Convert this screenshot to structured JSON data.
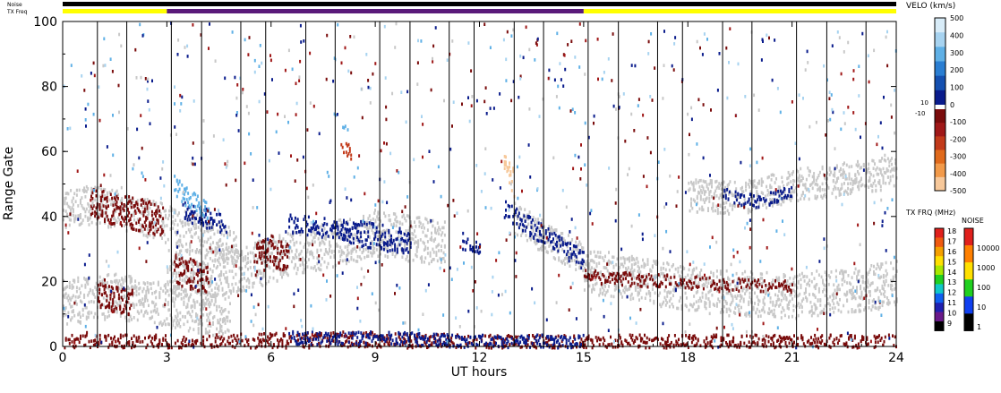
{
  "chart_data": {
    "type": "heatmap",
    "xlabel": "UT hours",
    "ylabel": "Range Gate",
    "xlim": [
      0,
      24
    ],
    "ylim": [
      0,
      100
    ],
    "x_ticks": [
      "0",
      "3",
      "6",
      "9",
      "12",
      "15",
      "18",
      "21",
      "24"
    ],
    "y_ticks": [
      "0",
      "20",
      "40",
      "60",
      "80",
      "100"
    ],
    "scan_boundaries_hours": [
      1,
      2,
      3,
      4,
      5,
      6,
      7,
      8,
      9,
      10,
      11,
      12,
      13,
      14,
      15,
      16,
      17,
      18,
      19,
      20,
      21,
      22,
      23
    ],
    "top_bars": {
      "noise_label": "Noise",
      "txfreq_label": "TX Freq",
      "noise_color": "#000000",
      "txfreq_segments": [
        {
          "start": 0,
          "end": 3,
          "color": "#ffff00"
        },
        {
          "start": 3,
          "end": 15,
          "color": "#5a1a7a"
        },
        {
          "start": 15,
          "end": 24,
          "color": "#ffff00"
        }
      ]
    },
    "velocity_colorbar": {
      "title": "VELO (km/s)",
      "ticks_top": [
        "500",
        "400",
        "300",
        "200",
        "100",
        "0"
      ],
      "ticks_bottom": [
        "-100",
        "-200",
        "-300",
        "-400",
        "-500"
      ],
      "side_labels": [
        "10",
        "-10"
      ],
      "colors": [
        "#d8ecf8",
        "#a7d3f0",
        "#5fb0e6",
        "#2a7ed2",
        "#1550b0",
        "#0a1c8c",
        "#ffffff",
        "#7a0c0c",
        "#a01818",
        "#c23a1a",
        "#e06a1c",
        "#f29a4a",
        "#f7c89a"
      ]
    },
    "txfreq_colorbar": {
      "title": "TX FRQ (MHz)",
      "ticks": [
        "18",
        "17",
        "16",
        "15",
        "14",
        "13",
        "12",
        "11",
        "10",
        "9"
      ],
      "colors": [
        "#e0201c",
        "#f05a10",
        "#f5a000",
        "#ffe000",
        "#a8e800",
        "#20d020",
        "#10c8c8",
        "#1060f0",
        "#2020b0",
        "#6a1a8a",
        "#000000"
      ]
    },
    "noise_colorbar": {
      "title": "NOISE",
      "ticks": [
        "10000",
        "1000",
        "100",
        "10",
        "1"
      ],
      "colors": [
        "#e0201c",
        "#ff8000",
        "#ffe000",
        "#20d020",
        "#1040f0",
        "#000000"
      ]
    },
    "ground_scatter_color": "#c8c8c8",
    "echo_bands": [
      {
        "x": [
          0,
          0.3,
          1.5,
          3.0,
          4.5,
          5.0
        ],
        "y": [
          42,
          44,
          43,
          38,
          33,
          30
        ],
        "width": 6,
        "color": "#c8c8c8"
      },
      {
        "x": [
          0,
          1.5,
          3.0,
          4.8
        ],
        "y": [
          14,
          16,
          13,
          10
        ],
        "width": 7,
        "color": "#c8c8c8"
      },
      {
        "x": [
          3.0,
          5.0,
          7.0,
          9.0,
          10.5,
          11.0
        ],
        "y": [
          23,
          24,
          30,
          35,
          33,
          32
        ],
        "width": 7,
        "color": "#c8c8c8"
      },
      {
        "x": [
          15.0,
          17.0,
          19.0,
          21.0,
          23.0,
          24.0
        ],
        "y": [
          24,
          20,
          17,
          16,
          18,
          20
        ],
        "width": 7,
        "color": "#c8c8c8"
      },
      {
        "x": [
          18.0,
          19.5,
          21.0,
          22.5,
          24.0
        ],
        "y": [
          47,
          46,
          50,
          52,
          54
        ],
        "width": 5,
        "color": "#c8c8c8"
      },
      {
        "x": [
          13.0,
          14.0,
          15.0
        ],
        "y": [
          40,
          33,
          27
        ],
        "width": 5,
        "color": "#c8c8c8"
      },
      {
        "x": [
          0.8,
          1.8,
          2.9
        ],
        "y": [
          44,
          42,
          39
        ],
        "width": 5,
        "color": "#7a0c0c"
      },
      {
        "x": [
          1.0,
          2.0
        ],
        "y": [
          16,
          14
        ],
        "width": 4,
        "color": "#7a0c0c"
      },
      {
        "x": [
          3.2,
          3.8,
          4.2
        ],
        "y": [
          25,
          22,
          20
        ],
        "width": 5,
        "color": "#7a0c0c"
      },
      {
        "x": [
          5.5,
          6.0,
          6.5
        ],
        "y": [
          27,
          30,
          28
        ],
        "width": 5,
        "color": "#7a0c0c"
      },
      {
        "x": [
          3.5,
          4.0,
          4.7
        ],
        "y": [
          42,
          40,
          38
        ],
        "width": 3,
        "color": "#0a1c8c"
      },
      {
        "x": [
          3.2,
          3.7,
          4.2
        ],
        "y": [
          50,
          45,
          42
        ],
        "width": 3,
        "color": "#5fb0e6"
      },
      {
        "x": [
          6.5,
          7.5,
          8.2
        ],
        "y": [
          38,
          37,
          36
        ],
        "width": 3,
        "color": "#0a1c8c"
      },
      {
        "x": [
          8.0,
          9.0,
          10.0
        ],
        "y": [
          37,
          34,
          33
        ],
        "width": 4,
        "color": "#0a1c8c"
      },
      {
        "x": [
          12.7,
          13.5,
          14.5,
          15.0
        ],
        "y": [
          43,
          37,
          30,
          27
        ],
        "width": 3,
        "color": "#0a1c8c"
      },
      {
        "x": [
          11.5,
          12.0
        ],
        "y": [
          32,
          31
        ],
        "width": 2,
        "color": "#0a1c8c"
      },
      {
        "x": [
          0,
          4.0,
          8.0,
          12.0,
          15.0,
          24.0
        ],
        "y": [
          1,
          1,
          2,
          1,
          1,
          1
        ],
        "width": 3,
        "color": "#7a0c0c"
      },
      {
        "x": [
          6.5,
          9.0,
          12.0,
          15.0
        ],
        "y": [
          3,
          3,
          2,
          2
        ],
        "width": 2,
        "color": "#0a1c8c"
      },
      {
        "x": [
          12.7,
          13.0
        ],
        "y": [
          58,
          50
        ],
        "width": 4,
        "color": "#f7c89a"
      },
      {
        "x": [
          7.8,
          8.2
        ],
        "y": [
          72,
          66
        ],
        "width": 1,
        "color": "#5fb0e6"
      },
      {
        "x": [
          8.0,
          8.3
        ],
        "y": [
          62,
          60
        ],
        "width": 2,
        "color": "#c23a1a"
      },
      {
        "x": [
          19.0,
          20.0,
          21.0
        ],
        "y": [
          47,
          45,
          48
        ],
        "width": 2,
        "color": "#0a1c8c"
      },
      {
        "x": [
          15.0,
          18.0,
          21.0
        ],
        "y": [
          22,
          20,
          19
        ],
        "width": 2,
        "color": "#7a0c0c"
      }
    ]
  }
}
